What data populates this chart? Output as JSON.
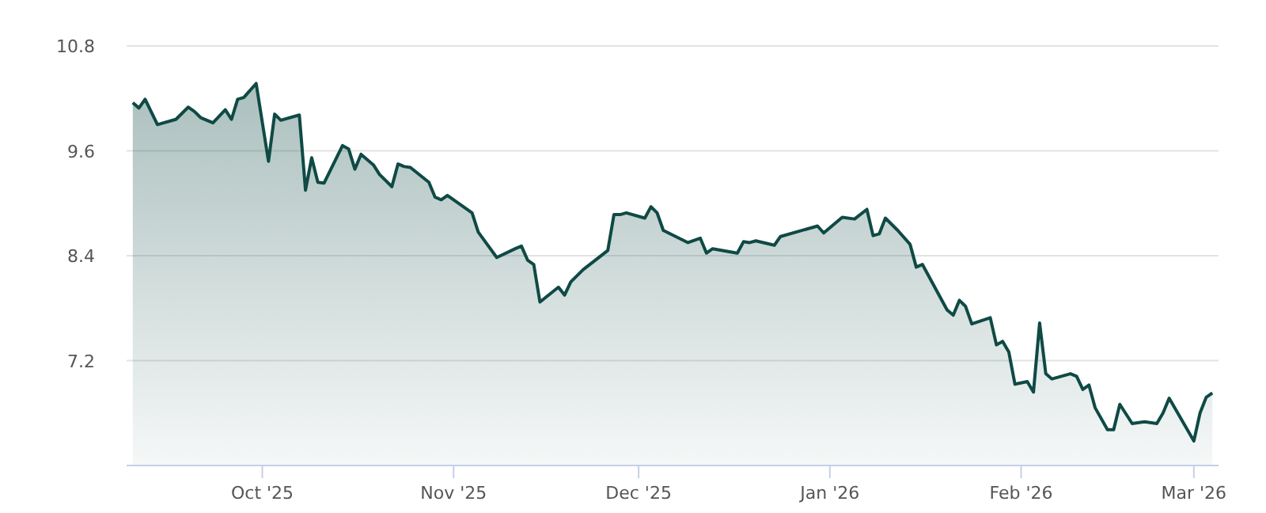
{
  "chart_data": {
    "type": "area",
    "x": [
      "2025-09-10",
      "2025-09-11",
      "2025-09-12",
      "2025-09-14",
      "2025-09-17",
      "2025-09-19",
      "2025-09-20",
      "2025-09-21",
      "2025-09-23",
      "2025-09-25",
      "2025-09-26",
      "2025-09-27",
      "2025-09-28",
      "2025-09-30",
      "2025-10-02",
      "2025-10-03",
      "2025-10-04",
      "2025-10-07",
      "2025-10-08",
      "2025-10-09",
      "2025-10-10",
      "2025-10-11",
      "2025-10-14",
      "2025-10-15",
      "2025-10-16",
      "2025-10-17",
      "2025-10-19",
      "2025-10-20",
      "2025-10-22",
      "2025-10-23",
      "2025-10-24",
      "2025-10-25",
      "2025-10-28",
      "2025-10-29",
      "2025-10-30",
      "2025-10-31",
      "2025-11-04",
      "2025-11-05",
      "2025-11-08",
      "2025-11-11",
      "2025-11-12",
      "2025-11-13",
      "2025-11-14",
      "2025-11-15",
      "2025-11-18",
      "2025-11-19",
      "2025-11-20",
      "2025-11-22",
      "2025-11-26",
      "2025-11-27",
      "2025-11-28",
      "2025-11-29",
      "2025-12-02",
      "2025-12-03",
      "2025-12-04",
      "2025-12-05",
      "2025-12-09",
      "2025-12-11",
      "2025-12-12",
      "2025-12-13",
      "2025-12-17",
      "2025-12-18",
      "2025-12-19",
      "2025-12-20",
      "2025-12-23",
      "2025-12-24",
      "2025-12-30",
      "2025-12-31",
      "2026-01-03",
      "2026-01-05",
      "2026-01-07",
      "2026-01-08",
      "2026-01-09",
      "2026-01-10",
      "2026-01-12",
      "2026-01-14",
      "2026-01-15",
      "2026-01-16",
      "2026-01-20",
      "2026-01-21",
      "2026-01-22",
      "2026-01-23",
      "2026-01-24",
      "2026-01-27",
      "2026-01-28",
      "2026-01-29",
      "2026-01-30",
      "2026-01-31",
      "2026-02-02",
      "2026-02-03",
      "2026-02-04",
      "2026-02-05",
      "2026-02-06",
      "2026-02-09",
      "2026-02-10",
      "2026-02-11",
      "2026-02-12",
      "2026-02-13",
      "2026-02-15",
      "2026-02-16",
      "2026-02-17",
      "2026-02-19",
      "2026-02-21",
      "2026-02-23",
      "2026-02-24",
      "2026-02-25",
      "2026-03-01",
      "2026-03-02",
      "2026-03-03",
      "2026-03-04"
    ],
    "series": [
      {
        "color": "#0f4a45",
        "values": [
          10.15,
          10.09,
          10.19,
          9.9,
          9.96,
          10.1,
          10.05,
          9.98,
          9.92,
          10.07,
          9.96,
          10.19,
          10.21,
          10.37,
          9.48,
          10.02,
          9.95,
          10.01,
          9.15,
          9.52,
          9.24,
          9.23,
          9.66,
          9.62,
          9.39,
          9.56,
          9.44,
          9.33,
          9.19,
          9.45,
          9.42,
          9.41,
          9.24,
          9.07,
          9.04,
          9.09,
          8.89,
          8.67,
          8.38,
          8.48,
          8.51,
          8.35,
          8.3,
          7.87,
          8.04,
          7.95,
          8.1,
          8.24,
          8.46,
          8.87,
          8.87,
          8.89,
          8.83,
          8.96,
          8.89,
          8.69,
          8.55,
          8.6,
          8.43,
          8.48,
          8.43,
          8.56,
          8.55,
          8.57,
          8.52,
          8.62,
          8.74,
          8.66,
          8.84,
          8.82,
          8.93,
          8.63,
          8.65,
          8.83,
          8.69,
          8.53,
          8.27,
          8.3,
          7.78,
          7.72,
          7.89,
          7.82,
          7.62,
          7.69,
          7.38,
          7.42,
          7.3,
          6.93,
          6.96,
          6.84,
          7.63,
          7.05,
          6.99,
          7.05,
          7.02,
          6.87,
          6.92,
          6.66,
          6.41,
          6.41,
          6.7,
          6.48,
          6.5,
          6.48,
          6.6,
          6.77,
          6.28,
          6.6,
          6.78,
          6.83
        ]
      }
    ],
    "xlim": [
      "2025-09-09",
      "2026-03-05"
    ],
    "xticks": [
      {
        "value": "2025-10-01",
        "label": "Oct '25"
      },
      {
        "value": "2025-11-01",
        "label": "Nov '25"
      },
      {
        "value": "2025-12-01",
        "label": "Dec '25"
      },
      {
        "value": "2026-01-01",
        "label": "Jan '26"
      },
      {
        "value": "2026-02-01",
        "label": "Feb '26"
      },
      {
        "value": "2026-03-01",
        "label": "Mar '26"
      }
    ],
    "ylim": [
      6.0,
      10.8
    ],
    "yticks": [
      7.2,
      8.4,
      9.6,
      10.8
    ],
    "grid": "y",
    "marker": "none",
    "line_style": "solid"
  }
}
